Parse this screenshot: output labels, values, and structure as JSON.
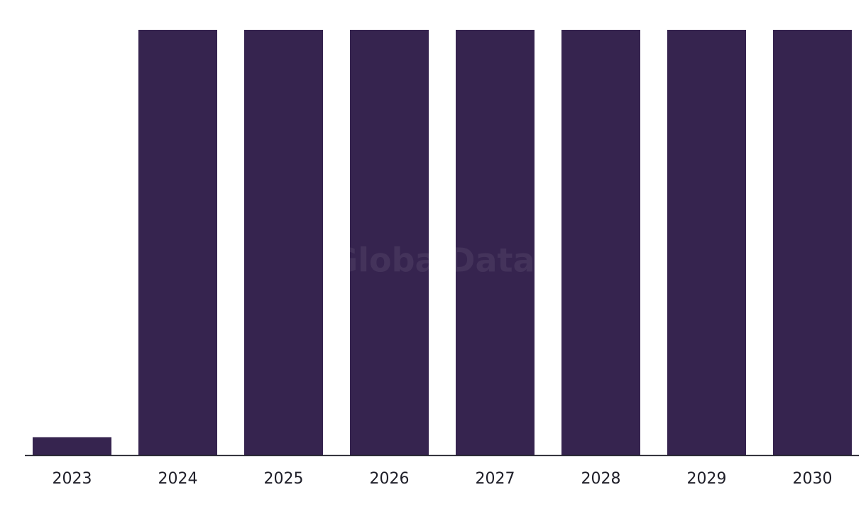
{
  "chart_data": {
    "type": "bar",
    "watermark": "GlobalData",
    "categories": [
      "2023",
      "2024",
      "2025",
      "2026",
      "2027",
      "2028",
      "2029",
      "2030"
    ],
    "values": [
      4.2,
      100,
      100,
      100,
      100,
      100,
      100,
      100
    ],
    "color": "#36244f",
    "ylim": [
      0,
      100
    ]
  }
}
